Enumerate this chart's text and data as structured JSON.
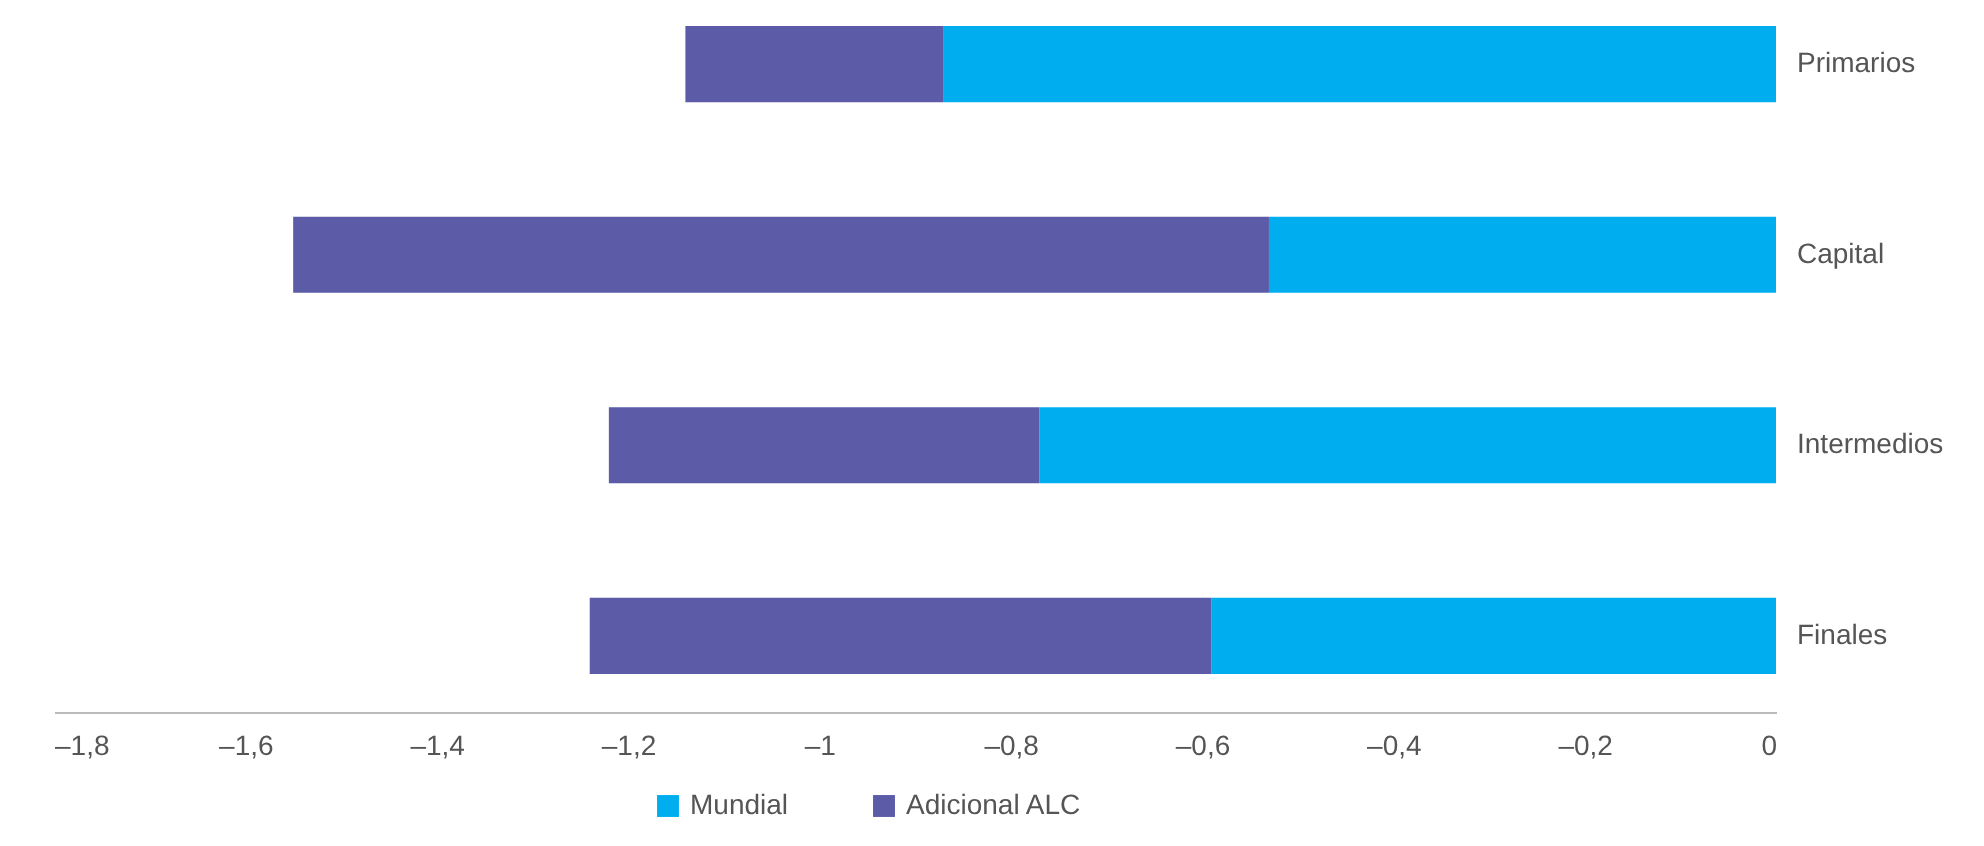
{
  "chart_data": {
    "type": "bar",
    "orientation": "horizontal",
    "stacked": true,
    "categories": [
      "Primarios",
      "Capital",
      "Intermedios",
      "Finales"
    ],
    "series": [
      {
        "name": "Mundial",
        "color": "#00aeef",
        "values": [
          -0.87,
          -0.53,
          -0.77,
          -0.59
        ]
      },
      {
        "name": "Adicional ALC",
        "color": "#5b5ba8",
        "values": [
          -0.27,
          -1.02,
          -0.45,
          -0.65
        ]
      }
    ],
    "xlim": [
      -1.8,
      0
    ],
    "xticks": [
      {
        "value": -1.8,
        "label": "–1,8"
      },
      {
        "value": -1.6,
        "label": "–1,6"
      },
      {
        "value": -1.4,
        "label": "–1,4"
      },
      {
        "value": -1.2,
        "label": "–1,2"
      },
      {
        "value": -1,
        "label": "–1"
      },
      {
        "value": -0.8,
        "label": "–0,8"
      },
      {
        "value": -0.6,
        "label": "–0,6"
      },
      {
        "value": -0.4,
        "label": "–0,4"
      },
      {
        "value": -0.2,
        "label": "–0,2"
      },
      {
        "value": 0,
        "label": "0"
      }
    ],
    "legend": "bottom"
  }
}
